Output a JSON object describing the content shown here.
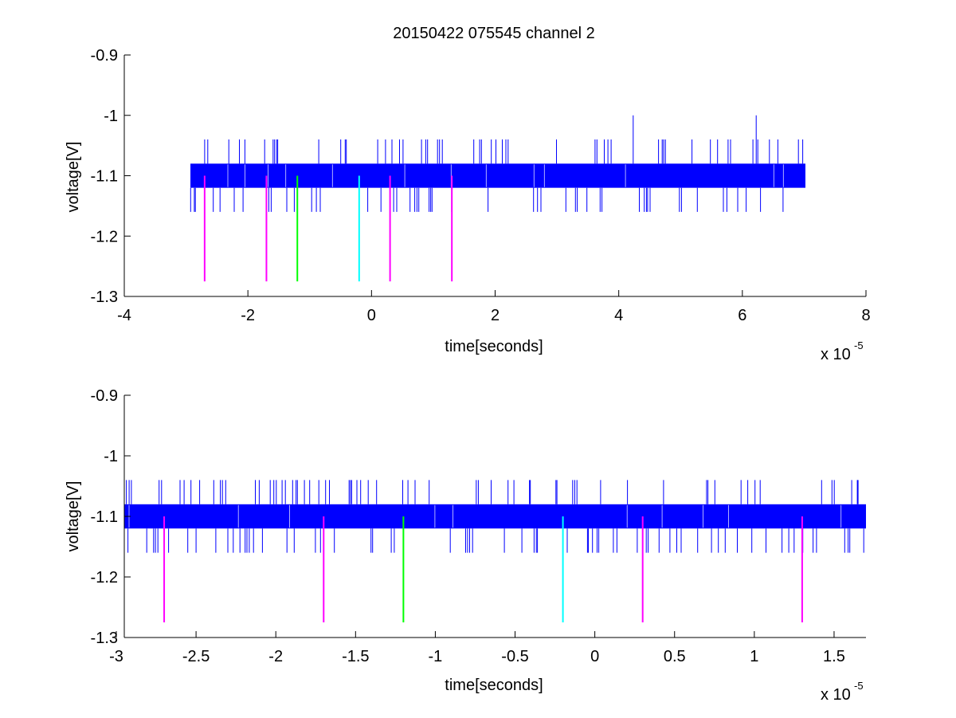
{
  "figure": {
    "title": "20150422 075545 channel 2"
  },
  "chart_data": [
    {
      "type": "line",
      "title": "20150422 075545 channel 2",
      "xlabel": "time[seconds]",
      "ylabel": "voltage[V]",
      "x_exponent_label": "x 10",
      "x_exponent": "-5",
      "xlim": [
        -4,
        8
      ],
      "ylim": [
        -1.3,
        -0.9
      ],
      "y_reversed": true,
      "grid": false,
      "x_ticks": [
        -4,
        -2,
        0,
        2,
        4,
        6,
        8
      ],
      "x_tick_labels": [
        "-4",
        "-2",
        "0",
        "2",
        "4",
        "6",
        "8"
      ],
      "y_ticks": [
        -0.9,
        -1,
        -1.1,
        -1.2,
        -1.3
      ],
      "y_tick_labels": [
        "-0.9",
        "-1",
        "-1.1",
        "-1.2",
        "-1.3"
      ],
      "signal": {
        "color": "#0000ff",
        "x_range": [
          -2.93,
          7.02
        ],
        "band": [
          -1.12,
          -1.08
        ],
        "spike_up_levels": [
          -1.04,
          -1.0
        ],
        "spike_down_level": -1.16
      },
      "markers": [
        {
          "x": -2.7,
          "y_top": -1.1,
          "y_bottom": -1.275,
          "color": "#ff00ff"
        },
        {
          "x": -1.7,
          "y_top": -1.1,
          "y_bottom": -1.275,
          "color": "#ff00ff"
        },
        {
          "x": -1.2,
          "y_top": -1.1,
          "y_bottom": -1.275,
          "color": "#00ff00"
        },
        {
          "x": -0.2,
          "y_top": -1.1,
          "y_bottom": -1.275,
          "color": "#00ffff"
        },
        {
          "x": 0.3,
          "y_top": -1.1,
          "y_bottom": -1.275,
          "color": "#ff00ff"
        },
        {
          "x": 1.3,
          "y_top": -1.1,
          "y_bottom": -1.275,
          "color": "#ff00ff"
        }
      ]
    },
    {
      "type": "line",
      "title": "",
      "xlabel": "time[seconds]",
      "ylabel": "voltage[V]",
      "x_exponent_label": "x 10",
      "x_exponent": "-5",
      "xlim": [
        -2.95,
        1.7
      ],
      "ylim": [
        -1.3,
        -0.9
      ],
      "y_reversed": true,
      "grid": false,
      "x_ticks": [
        -3,
        -2.5,
        -2,
        -1.5,
        -1,
        -0.5,
        0,
        0.5,
        1,
        1.5
      ],
      "x_tick_labels": [
        "-3",
        "-2.5",
        "-2",
        "-1.5",
        "-1",
        "-0.5",
        "0",
        "0.5",
        "1",
        "1.5"
      ],
      "y_ticks": [
        -0.9,
        -1,
        -1.1,
        -1.2,
        -1.3
      ],
      "y_tick_labels": [
        "-0.9",
        "-1",
        "-1.1",
        "-1.2",
        "-1.3"
      ],
      "signal": {
        "color": "#0000ff",
        "x_range": [
          -2.95,
          1.7
        ],
        "band": [
          -1.12,
          -1.08
        ],
        "spike_up_levels": [
          -1.04
        ],
        "spike_down_level": -1.16
      },
      "markers": [
        {
          "x": -2.7,
          "y_top": -1.1,
          "y_bottom": -1.275,
          "color": "#ff00ff"
        },
        {
          "x": -1.7,
          "y_top": -1.1,
          "y_bottom": -1.275,
          "color": "#ff00ff"
        },
        {
          "x": -1.2,
          "y_top": -1.1,
          "y_bottom": -1.275,
          "color": "#00ff00"
        },
        {
          "x": -0.2,
          "y_top": -1.1,
          "y_bottom": -1.275,
          "color": "#00ffff"
        },
        {
          "x": 0.3,
          "y_top": -1.1,
          "y_bottom": -1.275,
          "color": "#ff00ff"
        },
        {
          "x": 1.3,
          "y_top": -1.1,
          "y_bottom": -1.275,
          "color": "#ff00ff"
        }
      ]
    }
  ]
}
